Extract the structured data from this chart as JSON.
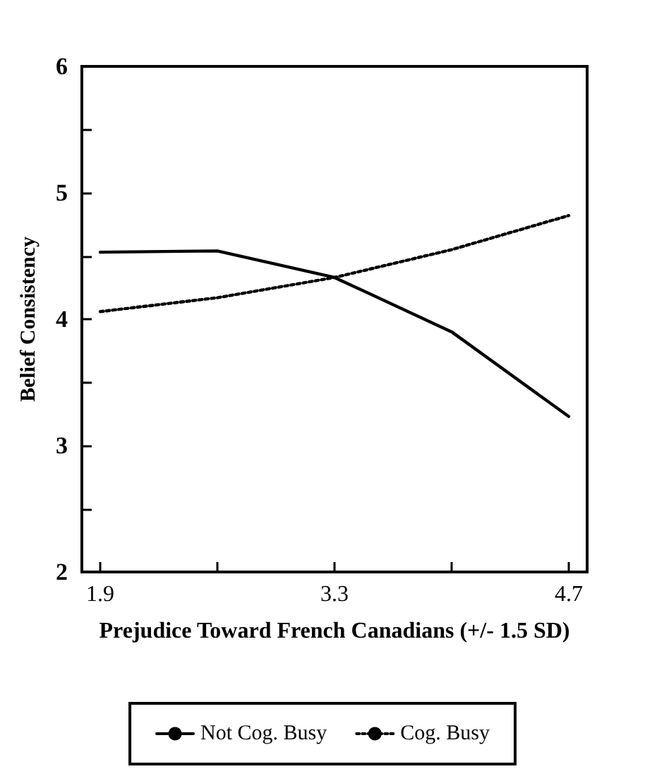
{
  "chart_data": {
    "type": "line",
    "xlabel": "Prejudice Toward French Canadians (+/- 1.5 SD)",
    "ylabel": "Belief Consistency",
    "x": [
      1.9,
      2.6,
      3.3,
      4.0,
      4.7
    ],
    "series": [
      {
        "name": "Not Cog. Busy",
        "color": "#000000",
        "line_style": "solid",
        "values": [
          4.53,
          4.54,
          4.33,
          3.9,
          3.23
        ]
      },
      {
        "name": "Cog. Busy",
        "color": "#000000",
        "line_style": "dotted",
        "values": [
          4.06,
          4.17,
          4.33,
          4.55,
          4.82
        ]
      }
    ],
    "xlim": [
      1.79,
      4.81
    ],
    "xticks": [
      1.9,
      {
        "value": 2.6,
        "label": null
      },
      3.3,
      {
        "value": 4.0,
        "label": null
      },
      4.7
    ],
    "ylim": [
      2,
      6
    ],
    "yticks": [
      2,
      {
        "value": 2.5,
        "label": null
      },
      3,
      {
        "value": 3.5,
        "label": null
      },
      4,
      {
        "value": 4.5,
        "label": null
      },
      5,
      {
        "value": 5.5,
        "label": null
      },
      6
    ],
    "grid": false,
    "legend": "bottom",
    "marker": "none"
  }
}
